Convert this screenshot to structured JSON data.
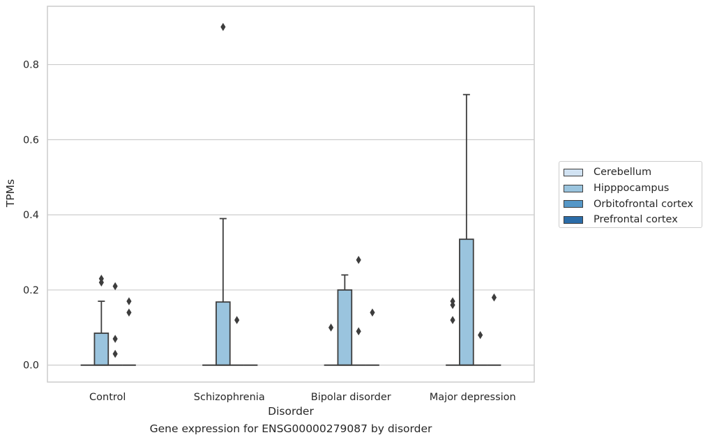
{
  "chart_data": {
    "type": "box",
    "title": "",
    "caption": "Gene expression for ENSG00000279087 by disorder",
    "xlabel": "Disorder",
    "ylabel": "TPMs",
    "ylim": [
      -0.045,
      0.955
    ],
    "yticks": [
      "0.0",
      "0.2",
      "0.4",
      "0.6",
      "0.8"
    ],
    "grid": "horizontal",
    "legend_position": "right",
    "categories": [
      "Control",
      "Schizophrenia",
      "Bipolar disorder",
      "Major depression"
    ],
    "series": [
      {
        "name": "Cerebellum",
        "color": "#d1e2f2",
        "boxes": [
          {
            "category": "Control",
            "min": 0,
            "q1": 0,
            "median": 0,
            "q3": 0,
            "max": 0,
            "outliers": []
          },
          {
            "category": "Schizophrenia",
            "min": 0,
            "q1": 0,
            "median": 0,
            "q3": 0,
            "max": 0,
            "outliers": []
          },
          {
            "category": "Bipolar disorder",
            "min": 0,
            "q1": 0,
            "median": 0,
            "q3": 0,
            "max": 0,
            "outliers": []
          },
          {
            "category": "Major depression",
            "min": 0,
            "q1": 0,
            "median": 0,
            "q3": 0,
            "max": 0,
            "outliers": [
              0.12,
              0.16,
              0.17
            ]
          }
        ]
      },
      {
        "name": "Hipppocampus",
        "color": "#9ac4de",
        "boxes": [
          {
            "category": "Control",
            "min": 0,
            "q1": 0,
            "median": 0,
            "q3": 0.085,
            "max": 0.17,
            "outliers": [
              0.22,
              0.23
            ]
          },
          {
            "category": "Schizophrenia",
            "min": 0,
            "q1": 0,
            "median": 0,
            "q3": 0.168,
            "max": 0.39,
            "outliers": [
              0.9
            ]
          },
          {
            "category": "Bipolar disorder",
            "min": 0,
            "q1": 0,
            "median": 0,
            "q3": 0.2,
            "max": 0.24,
            "outliers": []
          },
          {
            "category": "Major depression",
            "min": 0,
            "q1": 0,
            "median": 0,
            "q3": 0.335,
            "max": 0.72,
            "outliers": []
          }
        ]
      },
      {
        "name": "Orbitofrontal cortex",
        "color": "#5597c7",
        "boxes": [
          {
            "category": "Control",
            "min": 0,
            "q1": 0,
            "median": 0,
            "q3": 0,
            "max": 0,
            "outliers": [
              0.03,
              0.07,
              0.21
            ]
          },
          {
            "category": "Schizophrenia",
            "min": 0,
            "q1": 0,
            "median": 0,
            "q3": 0,
            "max": 0,
            "outliers": [
              0.12
            ]
          },
          {
            "category": "Bipolar disorder",
            "min": 0,
            "q1": 0,
            "median": 0,
            "q3": 0,
            "max": 0,
            "outliers": [
              0.09,
              0.28
            ]
          },
          {
            "category": "Major depression",
            "min": 0,
            "q1": 0,
            "median": 0,
            "q3": 0,
            "max": 0,
            "outliers": [
              0.08
            ]
          }
        ]
      },
      {
        "name": "Prefrontal cortex",
        "color": "#2b6ca8",
        "boxes": [
          {
            "category": "Control",
            "min": 0,
            "q1": 0,
            "median": 0,
            "q3": 0,
            "max": 0,
            "outliers": [
              0.14,
              0.17
            ]
          },
          {
            "category": "Schizophrenia",
            "min": 0,
            "q1": 0,
            "median": 0,
            "q3": 0,
            "max": 0,
            "outliers": []
          },
          {
            "category": "Bipolar disorder",
            "min": 0,
            "q1": 0,
            "median": 0,
            "q3": 0,
            "max": 0,
            "outliers": [
              0.14
            ]
          },
          {
            "category": "Major depression",
            "min": 0,
            "q1": 0,
            "median": 0,
            "q3": 0,
            "max": 0,
            "outliers": [
              0.18
            ]
          }
        ]
      }
    ],
    "extra_outliers": [
      {
        "category": "Bipolar disorder",
        "series": "Cerebellum",
        "values": [
          0.1
        ]
      }
    ]
  }
}
